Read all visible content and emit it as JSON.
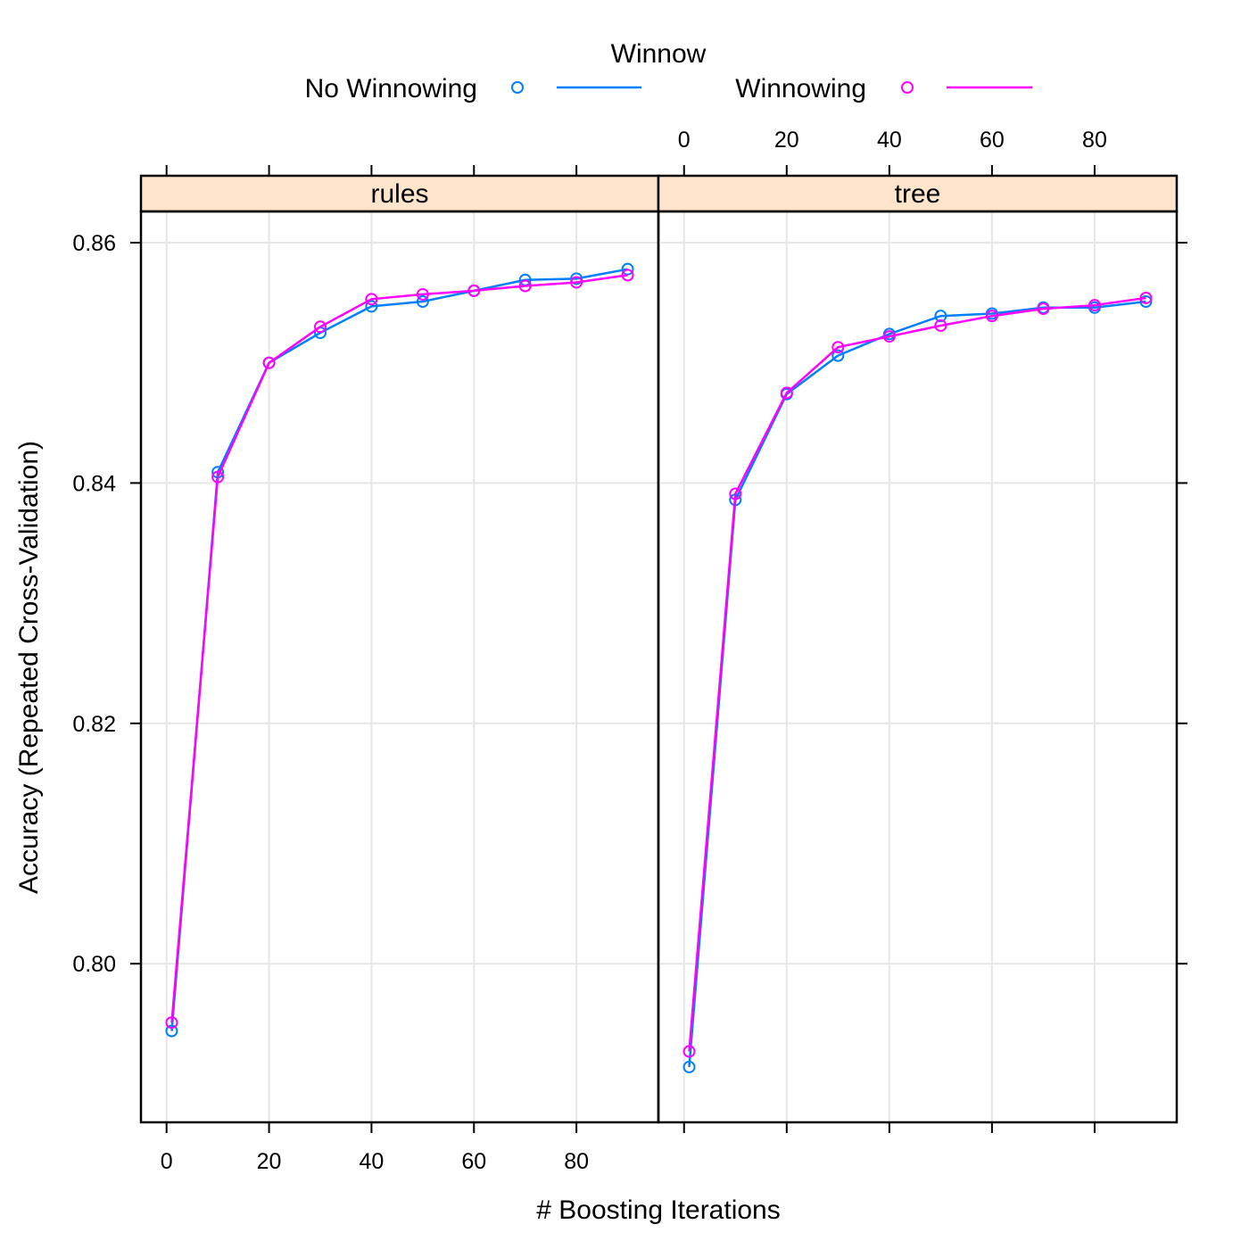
{
  "chart_data": {
    "type": "line",
    "legend": {
      "title": "Winnow",
      "placement": "top-center",
      "entries": [
        {
          "label": "No Winnowing",
          "color": "#0080ff"
        },
        {
          "label": "Winnowing",
          "color": "#ff00ff"
        }
      ]
    },
    "xlabel": "# Boosting Iterations",
    "ylabel": "Accuracy (Repeated Cross-Validation)",
    "xlim": [
      -5,
      96
    ],
    "ylim": [
      0.7868,
      0.8626
    ],
    "xticks": [
      0,
      20,
      40,
      60,
      80
    ],
    "yticks": [
      0.8,
      0.82,
      0.84,
      0.86
    ],
    "ytick_labels": [
      "0.80",
      "0.82",
      "0.84",
      "0.86"
    ],
    "grid": true,
    "panels": [
      {
        "label": "rules",
        "x": [
          1,
          10,
          20,
          30,
          40,
          50,
          60,
          70,
          80,
          90
        ],
        "series": [
          {
            "name": "No Winnowing",
            "color": "#0080ff",
            "values": [
              0.7944,
              0.8409,
              0.85,
              0.8525,
              0.8547,
              0.8551,
              0.856,
              0.8569,
              0.857,
              0.8578
            ]
          },
          {
            "name": "Winnowing",
            "color": "#ff00ff",
            "values": [
              0.7951,
              0.8405,
              0.85,
              0.853,
              0.8553,
              0.8557,
              0.856,
              0.8564,
              0.8567,
              0.8573
            ]
          }
        ]
      },
      {
        "label": "tree",
        "x": [
          1,
          10,
          20,
          30,
          40,
          50,
          60,
          70,
          80,
          90
        ],
        "series": [
          {
            "name": "No Winnowing",
            "color": "#0080ff",
            "values": [
              0.7914,
              0.8386,
              0.8474,
              0.8506,
              0.8524,
              0.8539,
              0.8541,
              0.8546,
              0.8546,
              0.8551
            ]
          },
          {
            "name": "Winnowing",
            "color": "#ff00ff",
            "values": [
              0.7927,
              0.8391,
              0.8475,
              0.8513,
              0.8522,
              0.8531,
              0.8539,
              0.8545,
              0.8548,
              0.8554
            ]
          }
        ]
      }
    ]
  }
}
